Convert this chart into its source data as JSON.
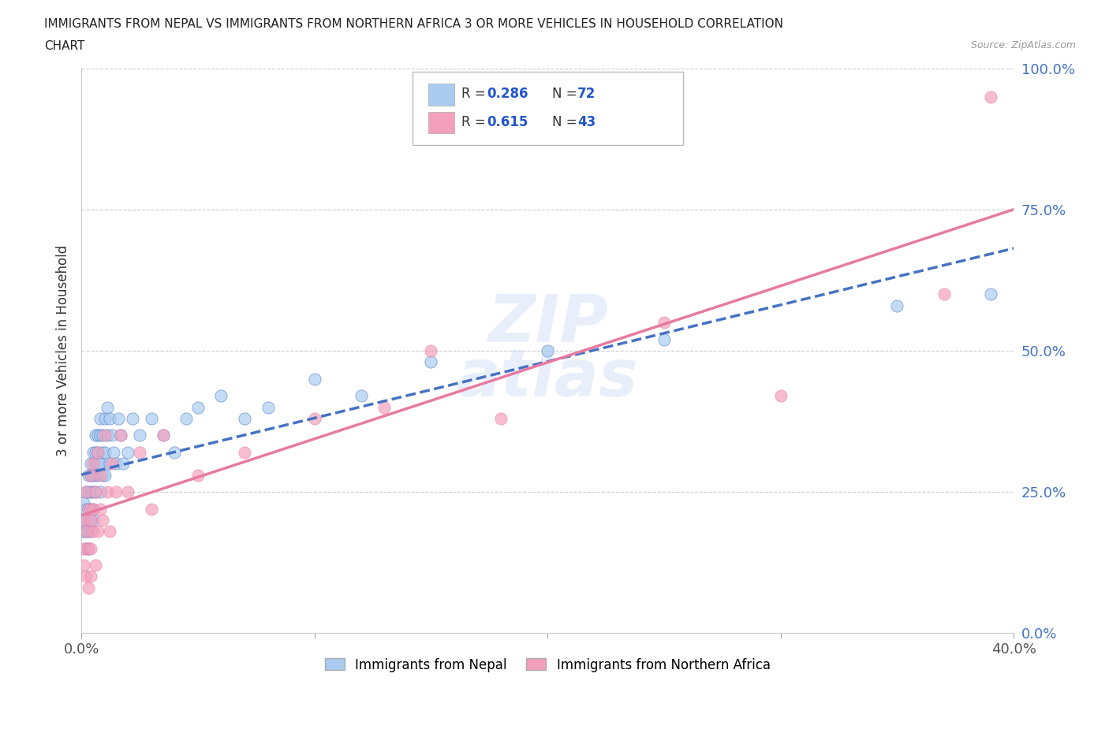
{
  "title_line1": "IMMIGRANTS FROM NEPAL VS IMMIGRANTS FROM NORTHERN AFRICA 3 OR MORE VEHICLES IN HOUSEHOLD CORRELATION",
  "title_line2": "CHART",
  "source": "Source: ZipAtlas.com",
  "ylabel": "3 or more Vehicles in Household",
  "xlabel_nepal": "Immigrants from Nepal",
  "xlabel_n_africa": "Immigrants from Northern Africa",
  "nepal_color": "#aaccf0",
  "n_africa_color": "#f4a0bc",
  "nepal_trend_color": "#4472C4",
  "n_africa_trend_color": "#e87aa0",
  "R_nepal": 0.286,
  "N_nepal": 72,
  "R_n_africa": 0.615,
  "N_n_africa": 43,
  "xlim": [
    0.0,
    0.4
  ],
  "ylim": [
    0.0,
    1.0
  ],
  "xticks": [
    0.0,
    0.1,
    0.2,
    0.3,
    0.4
  ],
  "yticks": [
    0.0,
    0.25,
    0.5,
    0.75,
    1.0
  ],
  "ytick_labels": [
    "0.0%",
    "25.0%",
    "50.0%",
    "75.0%",
    "100.0%"
  ],
  "xtick_labels": [
    "0.0%",
    "",
    "",
    "",
    "40.0%"
  ],
  "nepal_scatter_x": [
    0.001,
    0.001,
    0.001,
    0.002,
    0.002,
    0.002,
    0.002,
    0.002,
    0.003,
    0.003,
    0.003,
    0.003,
    0.003,
    0.003,
    0.004,
    0.004,
    0.004,
    0.004,
    0.004,
    0.004,
    0.005,
    0.005,
    0.005,
    0.005,
    0.005,
    0.006,
    0.006,
    0.006,
    0.006,
    0.006,
    0.007,
    0.007,
    0.007,
    0.007,
    0.008,
    0.008,
    0.008,
    0.008,
    0.009,
    0.009,
    0.009,
    0.01,
    0.01,
    0.01,
    0.011,
    0.011,
    0.012,
    0.012,
    0.013,
    0.014,
    0.015,
    0.016,
    0.017,
    0.018,
    0.02,
    0.022,
    0.025,
    0.03,
    0.035,
    0.04,
    0.045,
    0.05,
    0.06,
    0.07,
    0.08,
    0.1,
    0.12,
    0.15,
    0.2,
    0.25,
    0.35,
    0.39
  ],
  "nepal_scatter_y": [
    0.2,
    0.23,
    0.18,
    0.25,
    0.22,
    0.15,
    0.2,
    0.18,
    0.25,
    0.2,
    0.28,
    0.22,
    0.15,
    0.18,
    0.3,
    0.25,
    0.22,
    0.18,
    0.28,
    0.2,
    0.32,
    0.28,
    0.25,
    0.2,
    0.22,
    0.3,
    0.35,
    0.28,
    0.32,
    0.25,
    0.35,
    0.3,
    0.28,
    0.32,
    0.38,
    0.35,
    0.3,
    0.25,
    0.35,
    0.32,
    0.28,
    0.38,
    0.32,
    0.28,
    0.4,
    0.35,
    0.38,
    0.3,
    0.35,
    0.32,
    0.3,
    0.38,
    0.35,
    0.3,
    0.32,
    0.38,
    0.35,
    0.38,
    0.35,
    0.32,
    0.38,
    0.4,
    0.42,
    0.38,
    0.4,
    0.45,
    0.42,
    0.48,
    0.5,
    0.52,
    0.58,
    0.6
  ],
  "n_africa_scatter_x": [
    0.001,
    0.001,
    0.001,
    0.002,
    0.002,
    0.002,
    0.003,
    0.003,
    0.003,
    0.004,
    0.004,
    0.004,
    0.004,
    0.005,
    0.005,
    0.005,
    0.006,
    0.006,
    0.007,
    0.007,
    0.008,
    0.008,
    0.009,
    0.01,
    0.011,
    0.012,
    0.013,
    0.015,
    0.017,
    0.02,
    0.025,
    0.03,
    0.035,
    0.05,
    0.07,
    0.1,
    0.13,
    0.15,
    0.18,
    0.25,
    0.3,
    0.37,
    0.39
  ],
  "n_africa_scatter_y": [
    0.2,
    0.15,
    0.12,
    0.18,
    0.25,
    0.1,
    0.22,
    0.15,
    0.08,
    0.28,
    0.2,
    0.15,
    0.1,
    0.3,
    0.22,
    0.18,
    0.25,
    0.12,
    0.32,
    0.18,
    0.28,
    0.22,
    0.2,
    0.35,
    0.25,
    0.18,
    0.3,
    0.25,
    0.35,
    0.25,
    0.32,
    0.22,
    0.35,
    0.28,
    0.32,
    0.38,
    0.4,
    0.5,
    0.38,
    0.55,
    0.42,
    0.6,
    0.95
  ],
  "background_color": "#ffffff",
  "grid_color": "#cccccc",
  "title_color": "#222222",
  "stats_text_color": "#2255cc",
  "ytick_color": "#4472C4",
  "xtick_color": "#555555"
}
